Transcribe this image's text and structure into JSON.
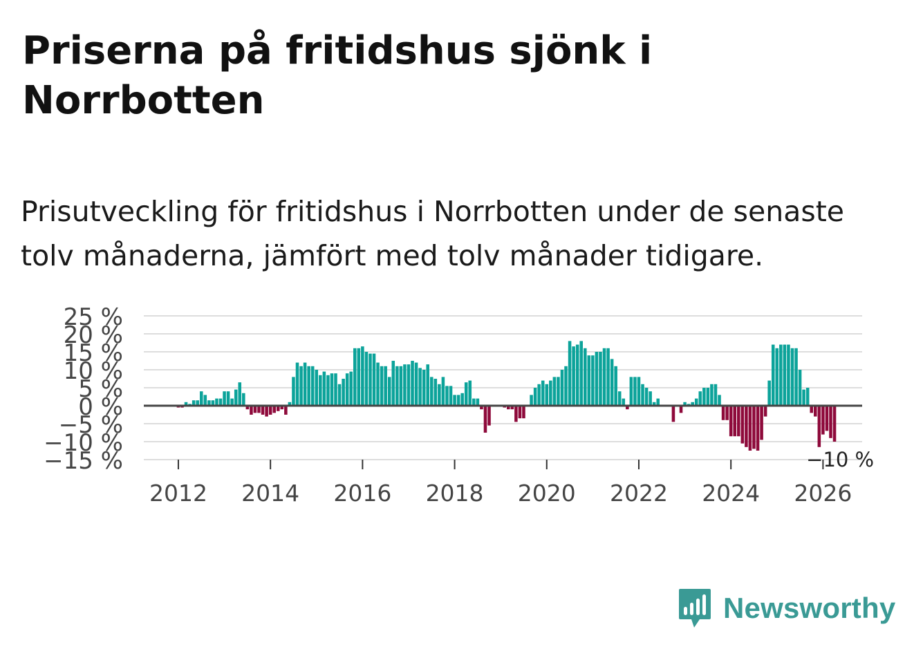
{
  "title": "Priserna på fritidshus sjönk i Norrbotten",
  "subtitle": "Prisutveckling för fritidshus i Norrbotten under de senaste tolv månaderna, jämfört med tolv månader tidigare.",
  "brand": {
    "name": "Newsworthy",
    "color": "#3a9a95"
  },
  "chart_data": {
    "type": "bar",
    "title": "Priserna på fritidshus sjönk i Norrbotten",
    "xlabel": "",
    "ylabel": "",
    "ylim": [
      -15,
      25
    ],
    "xlim": [
      2011.25,
      2026.85
    ],
    "grid": true,
    "legend": "none",
    "colors": {
      "positive": "#0ca39a",
      "negative": "#8e0a3b",
      "zero_line": "#444444",
      "grid": "#dddddd"
    },
    "y_ticks": [
      {
        "value": 25,
        "label": "25 %"
      },
      {
        "value": 20,
        "label": "20 %"
      },
      {
        "value": 15,
        "label": "15 %"
      },
      {
        "value": 10,
        "label": "10 %"
      },
      {
        "value": 5,
        "label": "5 %"
      },
      {
        "value": 0,
        "label": "0 %"
      },
      {
        "value": -5,
        "label": "−5 %"
      },
      {
        "value": -10,
        "label": "−10 %"
      },
      {
        "value": -15,
        "label": "−15 %"
      }
    ],
    "x_ticks": [
      {
        "value": 2012,
        "label": "2012"
      },
      {
        "value": 2014,
        "label": "2014"
      },
      {
        "value": 2016,
        "label": "2016"
      },
      {
        "value": 2018,
        "label": "2018"
      },
      {
        "value": 2020,
        "label": "2020"
      },
      {
        "value": 2022,
        "label": "2022"
      },
      {
        "value": 2024,
        "label": "2024"
      },
      {
        "value": 2026,
        "label": "2026"
      }
    ],
    "start": {
      "year": 2012,
      "month": 1
    },
    "values": [
      -0.5,
      -0.5,
      1,
      0.5,
      1.5,
      1.5,
      4,
      3,
      1.5,
      1.5,
      2,
      2,
      4,
      4,
      2,
      4.5,
      6.5,
      3.5,
      -1,
      -2.5,
      -2,
      -2,
      -2.5,
      -3,
      -2.5,
      -2,
      -1.5,
      -1,
      -2.5,
      1,
      8,
      12,
      11,
      12,
      11,
      11,
      10,
      8.5,
      9.5,
      8.5,
      9,
      9,
      6,
      7.5,
      9,
      9.5,
      16,
      16,
      16.5,
      15,
      14.5,
      14.5,
      12,
      11,
      11,
      8,
      12.5,
      11,
      11,
      11.5,
      11.5,
      12.5,
      12,
      10.5,
      10,
      11.5,
      8,
      7.5,
      6,
      8,
      5.5,
      5.5,
      3,
      3,
      3.5,
      6.5,
      7,
      2,
      2,
      -1,
      -7.5,
      -5.5,
      0,
      0,
      0,
      -0.5,
      -1,
      -1,
      -4.5,
      -3.5,
      -3.5,
      0,
      3,
      5,
      6,
      7,
      6,
      7,
      8,
      8,
      10,
      11,
      18,
      16.5,
      17,
      18,
      16,
      14,
      14,
      15,
      15,
      16,
      16,
      13,
      11,
      4,
      2,
      -1,
      8,
      8,
      8,
      6,
      5,
      4,
      1,
      2,
      0,
      0,
      0,
      -4.5,
      0,
      -2,
      1,
      0.5,
      1,
      2,
      4,
      5,
      5,
      6,
      6,
      3,
      -4,
      -4,
      -8.5,
      -8.5,
      -8.5,
      -10.5,
      -11.5,
      -12.5,
      -12,
      -12.5,
      -9.5,
      -3,
      7,
      17,
      16,
      17,
      17,
      17,
      16,
      16,
      10,
      4.5,
      5,
      -2,
      -3,
      -11.5,
      -8,
      -7,
      -9,
      -10
    ],
    "annotations": [
      {
        "text": "−10 %",
        "year": 2026,
        "month": 6,
        "value": -10
      }
    ]
  }
}
